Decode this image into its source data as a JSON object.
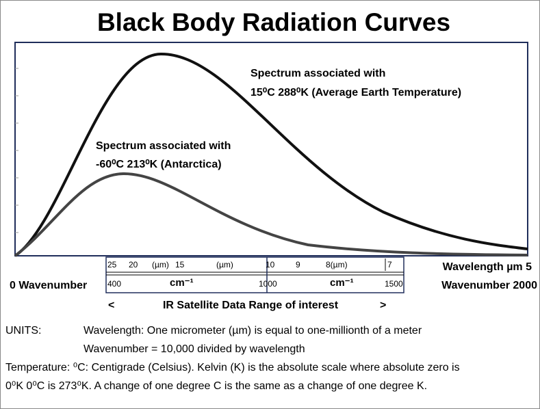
{
  "title": "Black Body Radiation Curves",
  "plot": {
    "annotations": [
      {
        "line1": "Spectrum associated with",
        "line2": "15⁰C 288⁰K (Average Earth Temperature)"
      },
      {
        "line1": "Spectrum associated with",
        "line2": "-60⁰C 213⁰K (Antarctica)"
      }
    ]
  },
  "scale": {
    "wavelength_labels": [
      "25",
      "20",
      "(µm)",
      "15",
      "(µm)",
      "10",
      "9",
      "8(µm)",
      "7"
    ],
    "wavenumber_labels": [
      "400",
      "cm⁻¹",
      "1000",
      "cm⁻¹",
      "1500"
    ],
    "right_wavelength": "Wavelength µm  5",
    "left_wavenumber": "0 Wavenumber",
    "right_wavenumber": "Wavenumber 2000",
    "range_left": "<",
    "range_text": "IR Satellite Data Range of interest",
    "range_right": ">"
  },
  "units": {
    "heading": "UNITS:",
    "line1": "Wavelength:  One micrometer (µm) is equal to one-millionth  of a meter",
    "line2": "Wavenumber = 10,000 divided by wavelength",
    "line3": "Temperature: ⁰C: Centigrade (Celsius).  Kelvin  (K) is the absolute scale where absolute zero is",
    "line4": "0⁰K  0⁰C is 273⁰K.  A change of one degree C is the same as a change of one degree K."
  }
}
